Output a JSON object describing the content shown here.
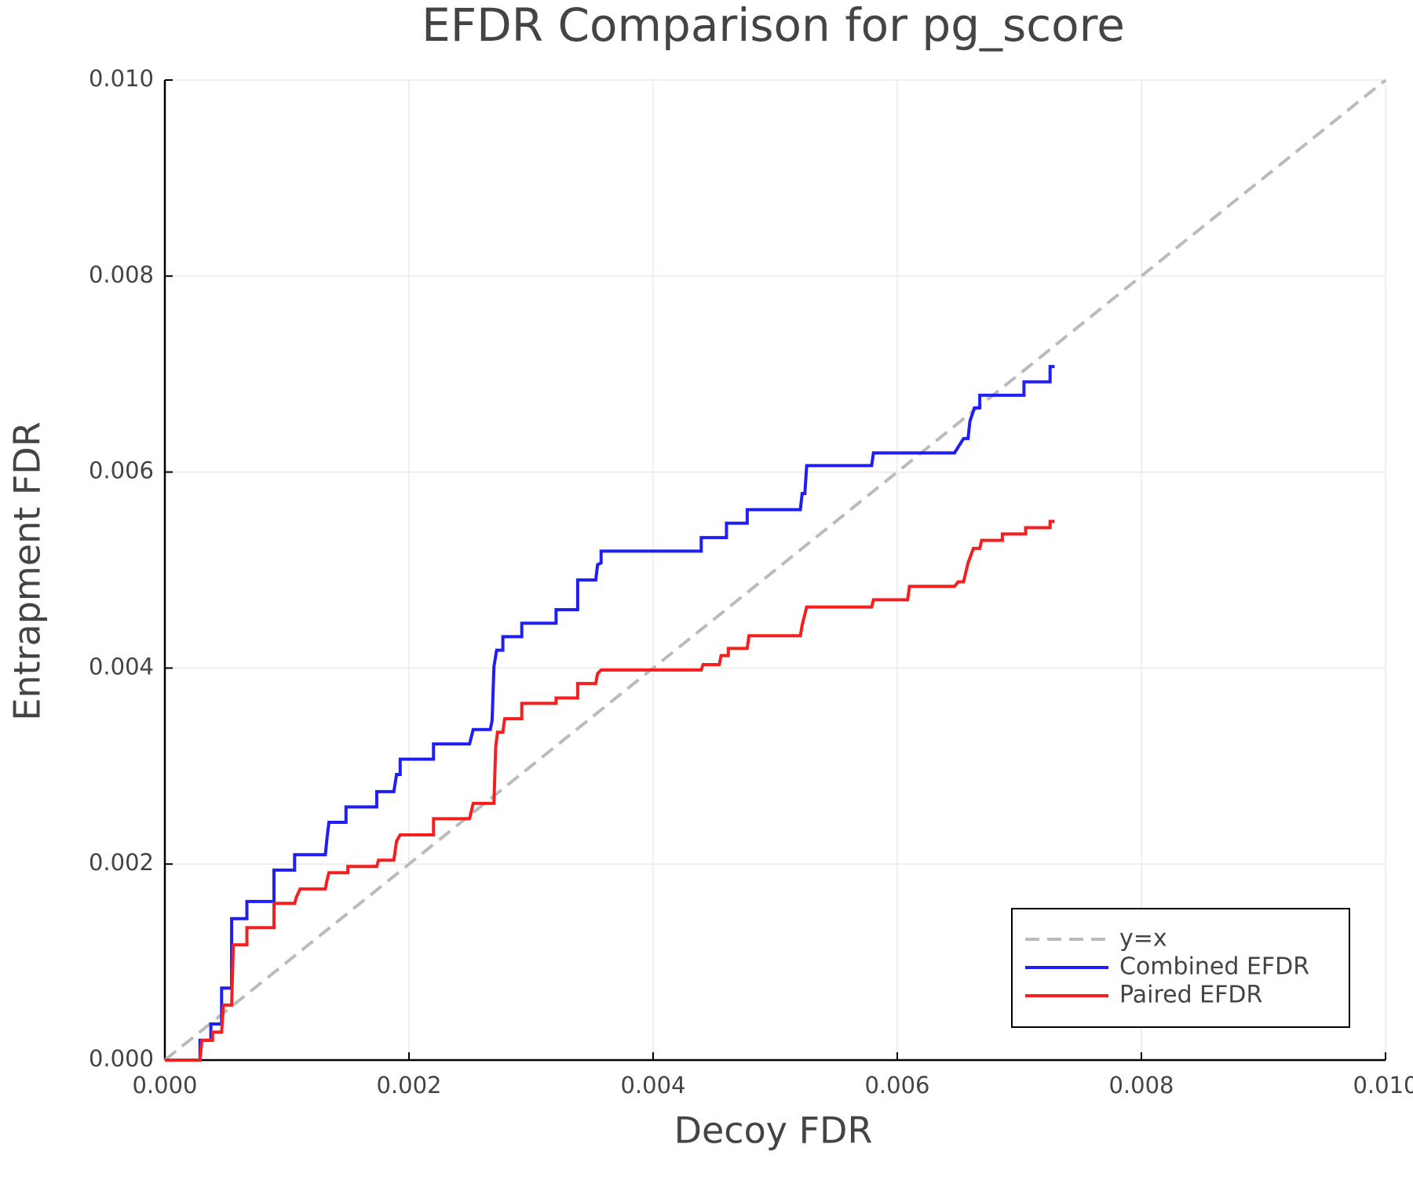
{
  "chart_data": {
    "type": "line",
    "title": "EFDR Comparison for pg_score",
    "x_label": "Decoy FDR",
    "y_label": "Entrapment FDR",
    "xlim": [
      0,
      0.01
    ],
    "ylim": [
      0,
      0.01
    ],
    "xticks": [
      {
        "value": 0,
        "label": "0.000"
      },
      0.002,
      0.004,
      0.006,
      0.008,
      {
        "value": 0.01,
        "label": "0.010"
      }
    ],
    "yticks": [
      {
        "value": 0,
        "label": "0.000"
      },
      0.002,
      0.004,
      0.006,
      0.008,
      {
        "value": 0.01,
        "label": "0.010"
      }
    ],
    "grid": true,
    "legend": "bottom right",
    "series": [
      {
        "name": "y=x",
        "color": "#bbbbbb",
        "linestyle": "dashed",
        "x": [
          0,
          0.01
        ],
        "values": [
          0,
          0.01
        ]
      },
      {
        "name": "Combined EFDR",
        "color": "#1f1ff5",
        "linestyle": "solid",
        "x": [
          0,
          0.000288,
          0.000288,
          0.000377,
          0.000377,
          0.000465,
          0.000465,
          0.000547,
          0.000547,
          0.000672,
          0.000672,
          0.000894,
          0.000894,
          0.001063,
          0.001063,
          0.001315,
          0.001329,
          0.001344,
          0.001484,
          0.001484,
          0.001736,
          0.001736,
          0.001876,
          0.001898,
          0.001928,
          0.001928,
          0.002201,
          0.002201,
          0.002496,
          0.002526,
          0.002666,
          0.002681,
          0.002696,
          0.002718,
          0.002769,
          0.002769,
          0.002924,
          0.002924,
          0.003205,
          0.003205,
          0.003382,
          0.003382,
          0.00353,
          0.003545,
          0.003574,
          0.003574,
          0.004394,
          0.004394,
          0.004601,
          0.004601,
          0.004771,
          0.004771,
          0.005206,
          0.005221,
          0.005243,
          0.005258,
          0.00579,
          0.005805,
          0.006469,
          0.006543,
          0.00658,
          0.006595,
          0.006632,
          0.006676,
          0.006676,
          0.007038,
          0.007038,
          0.007252,
          0.007252,
          0.007289
        ],
        "values": [
          0,
          0,
          0.000202,
          0.000202,
          0.000368,
          0.000368,
          0.000735,
          0.000735,
          0.001443,
          0.001443,
          0.001618,
          0.001618,
          0.001939,
          0.001939,
          0.002096,
          0.002096,
          0.00227,
          0.002426,
          0.002426,
          0.002583,
          0.002583,
          0.002739,
          0.002739,
          0.002914,
          0.002914,
          0.00307,
          0.00307,
          0.003226,
          0.003226,
          0.003373,
          0.003373,
          0.003465,
          0.004016,
          0.004182,
          0.004182,
          0.00432,
          0.00432,
          0.004458,
          0.004458,
          0.004596,
          0.004596,
          0.004899,
          0.004899,
          0.005055,
          0.005073,
          0.005193,
          0.005193,
          0.005331,
          0.005331,
          0.005478,
          0.005478,
          0.005616,
          0.005616,
          0.005781,
          0.005781,
          0.006066,
          0.006066,
          0.006195,
          0.006195,
          0.006342,
          0.006342,
          0.006517,
          0.006654,
          0.006654,
          0.006783,
          0.006783,
          0.006921,
          0.006921,
          0.007077,
          0.007077
        ]
      },
      {
        "name": "Paired EFDR",
        "color": "#f51f1f",
        "linestyle": "solid",
        "x": [
          0,
          0.000288,
          0.000303,
          0.000391,
          0.000391,
          0.000465,
          0.00048,
          0.000547,
          0.000561,
          0.000672,
          0.000672,
          0.000894,
          0.000894,
          0.001063,
          0.001078,
          0.001108,
          0.001315,
          0.001329,
          0.001344,
          0.001499,
          0.001499,
          0.001736,
          0.00175,
          0.001876,
          0.001898,
          0.001928,
          0.002201,
          0.002201,
          0.002496,
          0.002526,
          0.002696,
          0.00271,
          0.002725,
          0.002769,
          0.002784,
          0.002924,
          0.002924,
          0.003205,
          0.003205,
          0.003382,
          0.003382,
          0.00353,
          0.003545,
          0.003574,
          0.004394,
          0.004409,
          0.004542,
          0.004557,
          0.004616,
          0.004616,
          0.004771,
          0.004785,
          0.005206,
          0.005221,
          0.005258,
          0.00579,
          0.005805,
          0.006085,
          0.0061,
          0.006469,
          0.006499,
          0.006543,
          0.00658,
          0.006624,
          0.006676,
          0.006691,
          0.006861,
          0.006861,
          0.007052,
          0.007052,
          0.007252,
          0.007252,
          0.007289
        ],
        "values": [
          0,
          0,
          0.000202,
          0.000202,
          0.000285,
          0.000285,
          0.000561,
          0.000561,
          0.001176,
          0.001176,
          0.001351,
          0.001351,
          0.001599,
          0.001599,
          0.001664,
          0.001746,
          0.001746,
          0.001838,
          0.001912,
          0.001912,
          0.001976,
          0.001976,
          0.00204,
          0.00204,
          0.002233,
          0.002298,
          0.002298,
          0.002463,
          0.002463,
          0.002619,
          0.002619,
          0.003189,
          0.003346,
          0.003346,
          0.003483,
          0.003483,
          0.00364,
          0.00364,
          0.003695,
          0.003695,
          0.003842,
          0.003842,
          0.003943,
          0.00398,
          0.00398,
          0.004035,
          0.004035,
          0.004127,
          0.004127,
          0.0042,
          0.0042,
          0.004329,
          0.004329,
          0.004439,
          0.004623,
          0.004623,
          0.004697,
          0.004697,
          0.004834,
          0.004834,
          0.00488,
          0.00488,
          0.005073,
          0.005221,
          0.005221,
          0.005303,
          0.005303,
          0.005368,
          0.005368,
          0.005432,
          0.005432,
          0.005496,
          0.005496
        ]
      }
    ]
  }
}
